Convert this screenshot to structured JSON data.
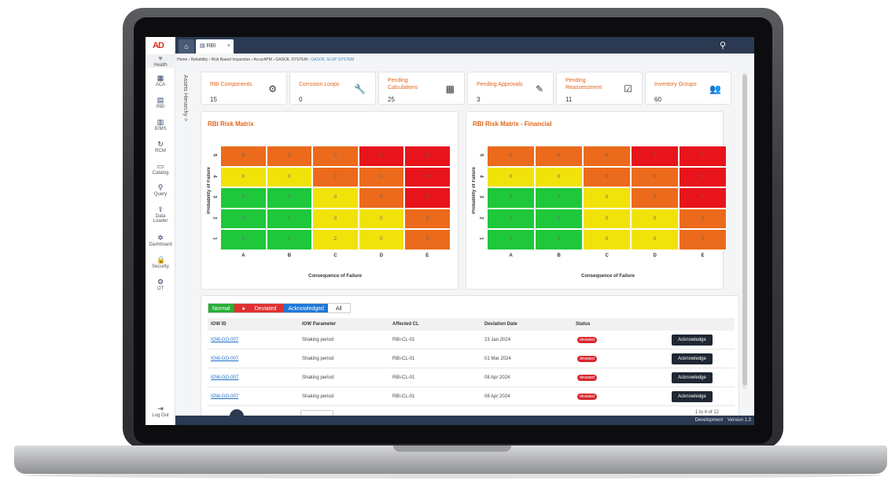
{
  "app": {
    "logo_text": "AD",
    "tab_label": "RBI",
    "tab_close": "×"
  },
  "nav": [
    {
      "label": "Health",
      "icon": "heart-icon",
      "glyph": "♥"
    },
    {
      "label": "ACA",
      "icon": "grid-icon",
      "glyph": "▦"
    },
    {
      "label": "RBI",
      "icon": "document-icon",
      "glyph": "▤"
    },
    {
      "label": "IDMS",
      "icon": "bar-chart-icon",
      "glyph": "▥"
    },
    {
      "label": "RCM",
      "icon": "cycle-icon",
      "glyph": "↻"
    },
    {
      "label": "Catalog",
      "icon": "folder-icon",
      "glyph": "▭"
    },
    {
      "label": "Query",
      "icon": "search-icon",
      "glyph": "⚲"
    },
    {
      "label": "Data",
      "label2": "Loader",
      "icon": "upload-icon",
      "glyph": "⇪"
    },
    {
      "label": "Dashboard",
      "icon": "dashboard-icon",
      "glyph": "✲"
    },
    {
      "label": "Security",
      "icon": "lock-icon",
      "glyph": "🔒"
    },
    {
      "label": "OT",
      "icon": "gear-icon",
      "glyph": "⚙"
    }
  ],
  "logout_label": "Log Out",
  "breadcrumb": [
    "Home",
    "Reliability",
    "Risk Based Inspection",
    "AccurAPM",
    "GASOIL SYSTEM",
    "GASOIL SLOP SYSTEM"
  ],
  "side_panel_label": "Assets Hierarchy >",
  "cards": [
    {
      "title": "RBI Components",
      "value": "15",
      "icon": "gears-icon",
      "glyph": "⚙"
    },
    {
      "title": "Corrosion Loops",
      "value": "0",
      "icon": "wrench-icon",
      "glyph": "🔧"
    },
    {
      "title": "Pending\nCalculations",
      "value": "25",
      "icon": "calculator-icon",
      "glyph": "▦"
    },
    {
      "title": "Pending Approvals",
      "value": "3",
      "icon": "pencil-icon",
      "glyph": "✎"
    },
    {
      "title": "Pending\nReassessment",
      "value": "11",
      "icon": "checklist-icon",
      "glyph": "☑"
    },
    {
      "title": "Inventory Groups",
      "value": "60",
      "icon": "users-icon",
      "glyph": "👥"
    }
  ],
  "matrices": [
    {
      "title": "RBI Risk Matrix",
      "ylabel": "Probability of Failure",
      "xlabel": "Consequence of Failure",
      "rows": [
        "5",
        "4",
        "3",
        "2",
        "1"
      ],
      "cols": [
        "A",
        "B",
        "C",
        "D",
        "E"
      ],
      "values": [
        [
          "0",
          "0",
          "0",
          "0",
          "0"
        ],
        [
          "0",
          "0",
          "0",
          "0",
          "0"
        ],
        [
          "0",
          "0",
          "0",
          "0",
          "0"
        ],
        [
          "0",
          "1",
          "0",
          "0",
          "0"
        ],
        [
          "0",
          "1",
          "2",
          "0",
          "0"
        ]
      ]
    },
    {
      "title": "RBI Risk Matrix - Financial",
      "ylabel": "Probability of Failure",
      "xlabel": "Consequence of Failure",
      "rows": [
        "5",
        "4",
        "3",
        "2",
        "1"
      ],
      "cols": [
        "A",
        "B",
        "C",
        "D",
        "E"
      ],
      "values": [
        [
          "0",
          "0",
          "0",
          "0",
          "0"
        ],
        [
          "0",
          "0",
          "0",
          "0",
          "0"
        ],
        [
          "0",
          "0",
          "0",
          "0",
          "0"
        ],
        [
          "0",
          "1",
          "0",
          "0",
          "0"
        ],
        [
          "0",
          "3",
          "0",
          "0",
          "0"
        ]
      ]
    }
  ],
  "matrix_colors": [
    [
      "#ec6a1b",
      "#ec6a1b",
      "#ec6a1b",
      "#e8141b",
      "#e8141b"
    ],
    [
      "#f1e20a",
      "#f1e20a",
      "#ec6a1b",
      "#ec6a1b",
      "#e8141b"
    ],
    [
      "#1ec83a",
      "#1ec83a",
      "#f1e20a",
      "#ec6a1b",
      "#e8141b"
    ],
    [
      "#1ec83a",
      "#1ec83a",
      "#f1e20a",
      "#f1e20a",
      "#ec6a1b"
    ],
    [
      "#1ec83a",
      "#1ec83a",
      "#f1e20a",
      "#f1e20a",
      "#ec6a1b"
    ]
  ],
  "filters": {
    "normal": "Normal",
    "deviated": "Deviated",
    "acknowledged": "Acknowledged",
    "all": "All"
  },
  "table": {
    "headers": [
      "IOW ID",
      "IOW Parameter",
      "Affected CL",
      "Deviation Date",
      "Status"
    ],
    "rows": [
      {
        "id": "IOW-GO-007",
        "param": "Shaking period",
        "cl": "RBI-CL-01",
        "date": "23 Jan 2024",
        "status": "deviated",
        "action": "Acknowledge"
      },
      {
        "id": "IOW-GO-007",
        "param": "Shaking period",
        "cl": "RBI-CL-01",
        "date": "01 Mar 2024",
        "status": "deviated",
        "action": "Acknowledge"
      },
      {
        "id": "IOW-GO-007",
        "param": "Shaking period",
        "cl": "RBI-CL-01",
        "date": "08 Apr 2024",
        "status": "deviated",
        "action": "Acknowledge"
      },
      {
        "id": "IOW-GO-007",
        "param": "Shaking period",
        "cl": "RBI-CL-01",
        "date": "08 Apr 2024",
        "status": "deviated",
        "action": "Acknowledge"
      }
    ],
    "pager": "1 to 4 of 12"
  },
  "footer": {
    "env": "Development",
    "version": "Version 1.3"
  }
}
